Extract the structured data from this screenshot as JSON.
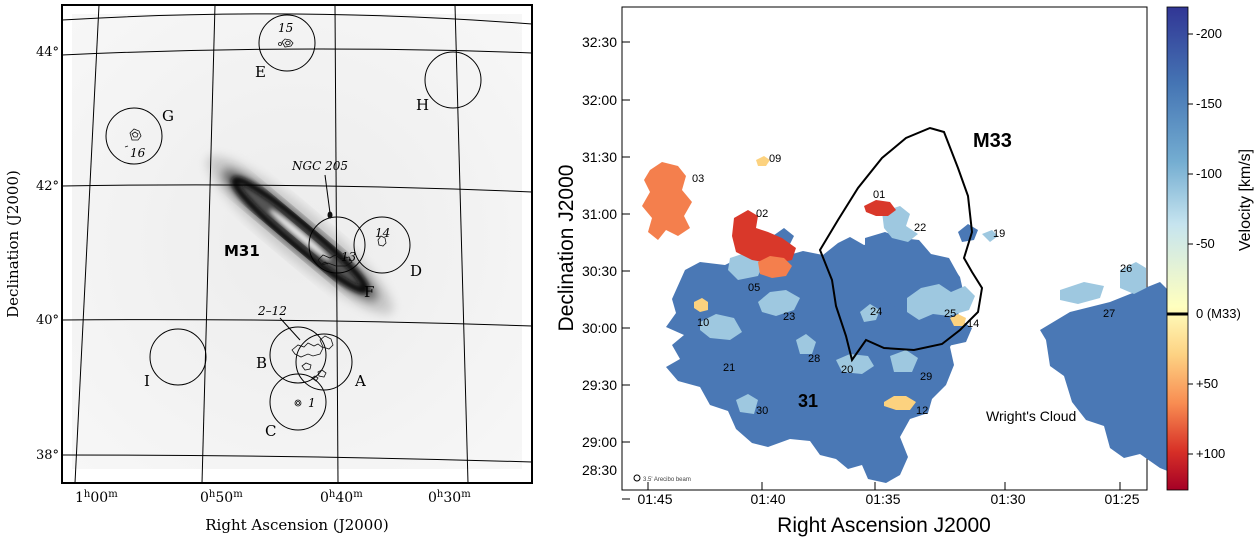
{
  "left_panel": {
    "galaxy_label": "M31",
    "ngc_label": "NGC 205",
    "clouds_label": "2–12",
    "y_axis_title": "Declination (J2000)",
    "x_axis_title": "Right Ascension (J2000)",
    "dec_ticks": [
      "44°",
      "42°",
      "40°",
      "38°"
    ],
    "ra_ticks": [
      {
        "h": "1",
        "m": "00"
      },
      {
        "h": "0",
        "m": "50"
      },
      {
        "h": "0",
        "m": "40"
      },
      {
        "h": "0",
        "m": "30"
      }
    ],
    "fields": [
      {
        "letter": "E",
        "number": "15"
      },
      {
        "letter": "H",
        "number": ""
      },
      {
        "letter": "G",
        "number": "16"
      },
      {
        "letter": "D",
        "number": "14"
      },
      {
        "letter": "F",
        "number": "13"
      },
      {
        "letter": "I",
        "number": ""
      },
      {
        "letter": "B",
        "number": ""
      },
      {
        "letter": "A",
        "number": ""
      },
      {
        "letter": "C",
        "number": "1"
      }
    ]
  },
  "right_panel": {
    "galaxy_outline_label": "M33",
    "x_axis_title": "Right Ascension J2000",
    "y_axis_title": "Declination J2000",
    "dec_ticks": [
      "32:30",
      "32:00",
      "31:30",
      "31:00",
      "30:30",
      "30:00",
      "29:30",
      "29:00",
      "28:30"
    ],
    "ra_ticks": [
      "01:45",
      "01:40",
      "01:35",
      "01:30",
      "01:25"
    ],
    "big_label": "31",
    "wright_label": "Wright's Cloud",
    "beam_label": "3.5' Arecibo beam",
    "cloud_labels": [
      "01",
      "02",
      "03",
      "05",
      "09",
      "10",
      "12",
      "14",
      "19",
      "20",
      "21",
      "22",
      "23",
      "24",
      "25",
      "26",
      "27",
      "28",
      "29",
      "30"
    ],
    "colorbar": {
      "title": "Velocity [km/s]",
      "ticks": [
        "-200",
        "-150",
        "-100",
        "-50",
        "0 (M33)",
        "+50",
        "+100"
      ],
      "colors": {
        "neg_200": "#313695",
        "neg_150": "#4575b4",
        "neg_100": "#abd9e9",
        "zero": "#ffffbf",
        "pos_50": "#fdae61",
        "pos_100": "#d73027",
        "pos_130": "#a50026"
      }
    },
    "emission_colors": {
      "main_blue": "#4a78b5",
      "light_blue": "#9ec8e0",
      "orange": "#f47f4d",
      "red": "#d9382a",
      "yellow": "#fcd27f"
    }
  }
}
